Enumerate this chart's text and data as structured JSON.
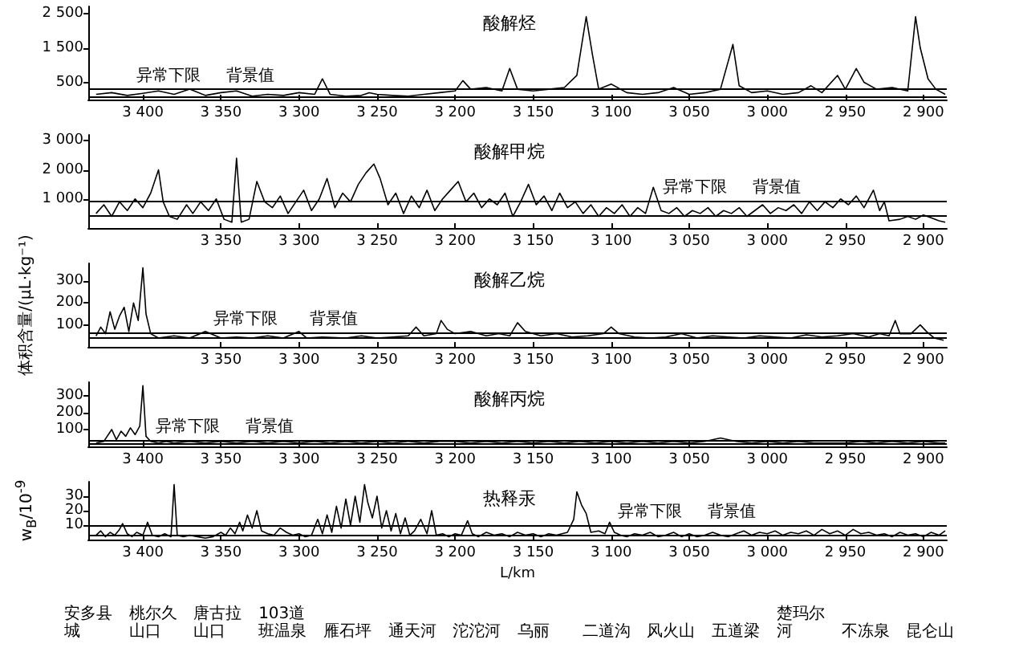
{
  "chart_data": [
    {
      "type": "line",
      "title": "酸解烃",
      "xlim": [
        3435,
        2885
      ],
      "ylim": [
        0,
        2700
      ],
      "xticks": [
        {
          "value": 3400,
          "label": "3 400"
        },
        {
          "value": 3350,
          "label": "3 350"
        },
        {
          "value": 3300,
          "label": "3 300"
        },
        {
          "value": 3250,
          "label": "3 250"
        },
        {
          "value": 3200,
          "label": "3 200"
        },
        {
          "value": 3150,
          "label": "3 150"
        },
        {
          "value": 3100,
          "label": "3 100"
        },
        {
          "value": 3050,
          "label": "3 050"
        },
        {
          "value": 3000,
          "label": "3 000"
        },
        {
          "value": 2950,
          "label": "2 950"
        },
        {
          "value": 2900,
          "label": "2 900"
        }
      ],
      "yticks": [
        500,
        {
          "value": 1500,
          "label": "1 500"
        },
        {
          "value": 2500,
          "label": "2 500"
        }
      ],
      "series": [
        {
          "color": "#000000",
          "x": [
            3430,
            3420,
            3410,
            3400,
            3390,
            3380,
            3370,
            3360,
            3350,
            3340,
            3330,
            3320,
            3310,
            3300,
            3290,
            3285,
            3280,
            3270,
            3260,
            3255,
            3250,
            3240,
            3230,
            3220,
            3210,
            3200,
            3195,
            3190,
            3180,
            3170,
            3165,
            3160,
            3150,
            3140,
            3130,
            3122,
            3116,
            3112,
            3108,
            3100,
            3090,
            3080,
            3070,
            3060,
            3050,
            3040,
            3030,
            3022,
            3018,
            3010,
            3000,
            2990,
            2980,
            2972,
            2965,
            2955,
            2950,
            2943,
            2938,
            2930,
            2920,
            2910,
            2905,
            2902,
            2897,
            2892,
            2886
          ],
          "values": [
            150,
            200,
            120,
            180,
            250,
            150,
            300,
            120,
            200,
            250,
            100,
            150,
            120,
            200,
            150,
            600,
            150,
            100,
            120,
            200,
            150,
            120,
            100,
            150,
            200,
            250,
            550,
            300,
            350,
            250,
            900,
            300,
            250,
            300,
            350,
            700,
            2400,
            1300,
            300,
            450,
            200,
            150,
            200,
            350,
            150,
            200,
            300,
            1600,
            400,
            200,
            250,
            150,
            200,
            400,
            200,
            700,
            300,
            900,
            500,
            300,
            350,
            250,
            2400,
            1500,
            600,
            300,
            150
          ]
        }
      ],
      "ref_lines": [
        {
          "axis": "y",
          "value": 300,
          "label": "异常下限"
        },
        {
          "axis": "y",
          "value": 100,
          "label": "背景值"
        }
      ]
    },
    {
      "type": "line",
      "title": "酸解甲烷",
      "xlim": [
        3435,
        2885
      ],
      "ylim": [
        0,
        3200
      ],
      "xticks": [
        {
          "value": 3350,
          "label": "3 350"
        },
        {
          "value": 3300,
          "label": "3 300"
        },
        {
          "value": 3250,
          "label": "3 250"
        },
        {
          "value": 3200,
          "label": "3 200"
        },
        {
          "value": 3150,
          "label": "3 150"
        },
        {
          "value": 3100,
          "label": "3 100"
        },
        {
          "value": 3050,
          "label": "3 050"
        },
        {
          "value": 3000,
          "label": "3 000"
        },
        {
          "value": 2950,
          "label": "2 950"
        },
        {
          "value": 2900,
          "label": "2 900"
        }
      ],
      "yticks": [
        {
          "value": 1000,
          "label": "1 000"
        },
        {
          "value": 2000,
          "label": "2 000"
        },
        {
          "value": 3000,
          "label": "3 000"
        }
      ],
      "series": [
        {
          "color": "#000000",
          "x": [
            3430,
            3425,
            3420,
            3415,
            3410,
            3405,
            3400,
            3395,
            3390,
            3387,
            3383,
            3378,
            3372,
            3368,
            3363,
            3358,
            3353,
            3348,
            3343,
            3340,
            3337,
            3332,
            3327,
            3322,
            3317,
            3312,
            3307,
            3302,
            3297,
            3292,
            3287,
            3282,
            3277,
            3272,
            3267,
            3262,
            3257,
            3252,
            3248,
            3243,
            3238,
            3233,
            3228,
            3223,
            3218,
            3213,
            3208,
            3203,
            3198,
            3193,
            3188,
            3183,
            3178,
            3173,
            3168,
            3163,
            3158,
            3153,
            3148,
            3143,
            3138,
            3133,
            3128,
            3123,
            3118,
            3113,
            3108,
            3103,
            3098,
            3093,
            3088,
            3083,
            3078,
            3073,
            3068,
            3063,
            3058,
            3053,
            3048,
            3043,
            3038,
            3033,
            3028,
            3023,
            3018,
            3013,
            3008,
            3003,
            2998,
            2993,
            2988,
            2983,
            2978,
            2973,
            2968,
            2963,
            2958,
            2953,
            2948,
            2943,
            2938,
            2932,
            2928,
            2925,
            2922,
            2915,
            2910,
            2905,
            2900,
            2895,
            2890,
            2886
          ],
          "values": [
            500,
            800,
            400,
            900,
            600,
            1000,
            700,
            1200,
            2000,
            900,
            400,
            300,
            800,
            500,
            900,
            600,
            1000,
            300,
            200,
            2400,
            200,
            300,
            1600,
            900,
            700,
            1100,
            500,
            900,
            1300,
            600,
            1000,
            1700,
            700,
            1200,
            900,
            1500,
            1900,
            2200,
            1700,
            800,
            1200,
            500,
            1100,
            700,
            1300,
            600,
            1000,
            1300,
            1600,
            900,
            1200,
            700,
            1000,
            800,
            1200,
            400,
            900,
            1500,
            800,
            1100,
            600,
            1200,
            700,
            900,
            500,
            800,
            400,
            700,
            500,
            800,
            400,
            700,
            500,
            1400,
            600,
            500,
            700,
            400,
            600,
            500,
            700,
            400,
            600,
            500,
            700,
            400,
            600,
            800,
            500,
            700,
            600,
            800,
            500,
            900,
            600,
            900,
            700,
            1000,
            800,
            1100,
            700,
            1300,
            600,
            900,
            250,
            300,
            400,
            300,
            450,
            350,
            250,
            200
          ]
        }
      ],
      "ref_lines": [
        {
          "axis": "y",
          "value": 950,
          "label": "异常下限"
        },
        {
          "axis": "y",
          "value": 450,
          "label": "背景值"
        }
      ]
    },
    {
      "type": "line",
      "title": "酸解乙烷",
      "ylabel": "体积含量/(μL·kg⁻¹)",
      "xlim": [
        3435,
        2885
      ],
      "ylim": [
        0,
        380
      ],
      "xticks": [
        {
          "value": 3350,
          "label": "3 350"
        },
        {
          "value": 3300,
          "label": "3 300"
        },
        {
          "value": 3250,
          "label": "3 250"
        },
        {
          "value": 3200,
          "label": "3 200"
        },
        {
          "value": 3150,
          "label": "3 150"
        },
        {
          "value": 3100,
          "label": "3 100"
        },
        {
          "value": 3050,
          "label": "3 050"
        },
        {
          "value": 3000,
          "label": "3 000"
        },
        {
          "value": 2950,
          "label": "2 950"
        },
        {
          "value": 2900,
          "label": "2 900"
        }
      ],
      "yticks": [
        100,
        200,
        300
      ],
      "series": [
        {
          "color": "#000000",
          "x": [
            3430,
            3427,
            3424,
            3421,
            3418,
            3415,
            3412,
            3409,
            3406,
            3403,
            3400,
            3398,
            3395,
            3390,
            3380,
            3370,
            3360,
            3350,
            3340,
            3330,
            3320,
            3310,
            3300,
            3295,
            3285,
            3270,
            3260,
            3250,
            3240,
            3230,
            3225,
            3220,
            3212,
            3209,
            3205,
            3200,
            3190,
            3180,
            3172,
            3165,
            3160,
            3155,
            3145,
            3135,
            3125,
            3115,
            3105,
            3100,
            3095,
            3085,
            3075,
            3065,
            3055,
            3045,
            3035,
            3025,
            3015,
            3005,
            2995,
            2985,
            2975,
            2965,
            2955,
            2945,
            2935,
            2928,
            2922,
            2918,
            2915,
            2908,
            2902,
            2898,
            2893,
            2887
          ],
          "values": [
            50,
            90,
            60,
            160,
            80,
            140,
            180,
            70,
            200,
            120,
            360,
            150,
            60,
            40,
            50,
            40,
            70,
            40,
            45,
            40,
            50,
            40,
            70,
            40,
            45,
            40,
            50,
            40,
            45,
            50,
            90,
            50,
            60,
            120,
            80,
            60,
            70,
            50,
            60,
            50,
            110,
            70,
            50,
            60,
            45,
            50,
            60,
            90,
            60,
            45,
            40,
            45,
            60,
            40,
            50,
            45,
            40,
            50,
            45,
            40,
            55,
            45,
            50,
            60,
            45,
            60,
            50,
            120,
            60,
            60,
            100,
            70,
            40,
            30
          ]
        }
      ],
      "ref_lines": [
        {
          "axis": "y",
          "value": 65,
          "label": "异常下限"
        },
        {
          "axis": "y",
          "value": 40,
          "label": "背景值"
        }
      ]
    },
    {
      "type": "line",
      "title": "酸解丙烷",
      "xlim": [
        3435,
        2885
      ],
      "ylim": [
        0,
        380
      ],
      "xticks": [
        {
          "value": 3400,
          "label": "3 400"
        },
        {
          "value": 3350,
          "label": "3 350"
        },
        {
          "value": 3300,
          "label": "3 300"
        },
        {
          "value": 3250,
          "label": "3 250"
        },
        {
          "value": 3200,
          "label": "3 200"
        },
        {
          "value": 3150,
          "label": "3 150"
        },
        {
          "value": 3100,
          "label": "3 100"
        },
        {
          "value": 3050,
          "label": "3 050"
        },
        {
          "value": 3000,
          "label": "3 000"
        },
        {
          "value": 2950,
          "label": "2 950"
        },
        {
          "value": 2900,
          "label": "2 900"
        }
      ],
      "yticks": [
        100,
        200,
        300
      ],
      "series": [
        {
          "color": "#000000",
          "x": [
            3430,
            3425,
            3420,
            3417,
            3414,
            3411,
            3408,
            3405,
            3402,
            3400,
            3398,
            3395,
            3390,
            3385,
            3380,
            3370,
            3360,
            3350,
            3340,
            3330,
            3320,
            3310,
            3300,
            3290,
            3280,
            3270,
            3260,
            3250,
            3240,
            3230,
            3220,
            3210,
            3200,
            3190,
            3180,
            3170,
            3160,
            3150,
            3140,
            3130,
            3120,
            3110,
            3100,
            3090,
            3080,
            3070,
            3060,
            3050,
            3040,
            3030,
            3020,
            3010,
            3000,
            2990,
            2980,
            2970,
            2960,
            2950,
            2940,
            2930,
            2920,
            2910,
            2900,
            2890,
            2886
          ],
          "values": [
            20,
            30,
            100,
            40,
            90,
            60,
            110,
            70,
            120,
            360,
            60,
            30,
            20,
            30,
            20,
            30,
            20,
            30,
            20,
            30,
            20,
            30,
            20,
            30,
            20,
            30,
            20,
            30,
            20,
            30,
            20,
            30,
            30,
            20,
            30,
            20,
            30,
            20,
            30,
            20,
            30,
            20,
            30,
            20,
            30,
            20,
            30,
            20,
            30,
            50,
            30,
            20,
            30,
            20,
            30,
            20,
            20,
            20,
            30,
            20,
            30,
            20,
            30,
            20,
            20
          ]
        }
      ],
      "ref_lines": [
        {
          "axis": "y",
          "value": 40,
          "label": "异常下限"
        },
        {
          "axis": "y",
          "value": 20,
          "label": "背景值"
        }
      ]
    },
    {
      "type": "line",
      "title": "热释汞",
      "ylabel": "w$_{B}$/10$^{-9}$",
      "xlabel": "L/km",
      "xlim": [
        3435,
        2885
      ],
      "ylim": [
        0,
        40
      ],
      "xticks": [
        {
          "value": 3400,
          "label": "3 400"
        },
        {
          "value": 3350,
          "label": "3 350"
        },
        {
          "value": 3300,
          "label": "3 300"
        },
        {
          "value": 3250,
          "label": "3 250"
        },
        {
          "value": 3200,
          "label": "3 200"
        },
        {
          "value": 3150,
          "label": "3 150"
        },
        {
          "value": 3100,
          "label": "3 100"
        },
        {
          "value": 3050,
          "label": "3 050"
        },
        {
          "value": 3000,
          "label": "3 000"
        },
        {
          "value": 2950,
          "label": "2 950"
        },
        {
          "value": 2900,
          "label": "2 900"
        }
      ],
      "yticks": [
        10,
        20,
        30
      ],
      "series": [
        {
          "color": "#000000",
          "x": [
            3430,
            3427,
            3424,
            3421,
            3418,
            3415,
            3413,
            3410,
            3407,
            3404,
            3400,
            3397,
            3394,
            3390,
            3386,
            3382,
            3380,
            3378,
            3374,
            3370,
            3365,
            3360,
            3355,
            3350,
            3347,
            3344,
            3341,
            3338,
            3336,
            3333,
            3330,
            3327,
            3324,
            3320,
            3316,
            3312,
            3308,
            3304,
            3300,
            3296,
            3292,
            3288,
            3285,
            3282,
            3279,
            3276,
            3273,
            3270,
            3267,
            3264,
            3261,
            3258,
            3256,
            3253,
            3250,
            3247,
            3244,
            3241,
            3238,
            3235,
            3232,
            3229,
            3226,
            3222,
            3218,
            3215,
            3212,
            3208,
            3204,
            3200,
            3196,
            3192,
            3189,
            3185,
            3180,
            3175,
            3170,
            3165,
            3160,
            3155,
            3150,
            3145,
            3140,
            3135,
            3128,
            3124,
            3122,
            3119,
            3116,
            3113,
            3108,
            3104,
            3101,
            3098,
            3094,
            3090,
            3085,
            3080,
            3075,
            3070,
            3065,
            3060,
            3055,
            3050,
            3045,
            3040,
            3035,
            3030,
            3025,
            3020,
            3015,
            3010,
            3005,
            3000,
            2995,
            2990,
            2985,
            2980,
            2975,
            2970,
            2965,
            2960,
            2955,
            2950,
            2945,
            2940,
            2935,
            2930,
            2925,
            2920,
            2915,
            2910,
            2905,
            2900,
            2895,
            2890,
            2886
          ],
          "values": [
            3,
            6,
            2,
            5,
            3,
            7,
            11,
            4,
            2,
            5,
            3,
            12,
            3,
            2,
            4,
            2,
            38,
            3,
            2,
            3,
            2,
            1,
            2,
            5,
            3,
            8,
            4,
            12,
            6,
            17,
            8,
            20,
            6,
            4,
            3,
            8,
            5,
            3,
            4,
            2,
            3,
            14,
            4,
            17,
            5,
            23,
            8,
            28,
            10,
            30,
            12,
            38,
            26,
            15,
            30,
            8,
            20,
            6,
            18,
            4,
            15,
            3,
            6,
            14,
            4,
            20,
            3,
            4,
            2,
            4,
            3,
            13,
            4,
            2,
            5,
            3,
            4,
            2,
            5,
            3,
            4,
            2,
            4,
            3,
            5,
            14,
            33,
            24,
            18,
            5,
            6,
            4,
            12,
            5,
            3,
            2,
            4,
            3,
            5,
            2,
            3,
            5,
            2,
            4,
            2,
            3,
            5,
            3,
            2,
            4,
            6,
            3,
            5,
            4,
            6,
            3,
            5,
            4,
            6,
            3,
            7,
            4,
            6,
            3,
            7,
            4,
            5,
            3,
            4,
            2,
            5,
            3,
            4,
            2,
            5,
            3,
            6
          ]
        }
      ],
      "ref_lines": [
        {
          "axis": "y",
          "value": 10,
          "label": "异常下限"
        },
        {
          "axis": "y",
          "value": 3,
          "label": "背景值"
        }
      ],
      "annotations": [
        "安多县城",
        "桃尔久山口",
        "唐古拉山口",
        "103道班温泉",
        "雁石坪",
        "通天河",
        "沱沱河",
        "乌丽",
        "二道沟",
        "风火山",
        "五道梁",
        "楚玛尔河",
        "不冻泉",
        "昆仑山"
      ]
    }
  ]
}
